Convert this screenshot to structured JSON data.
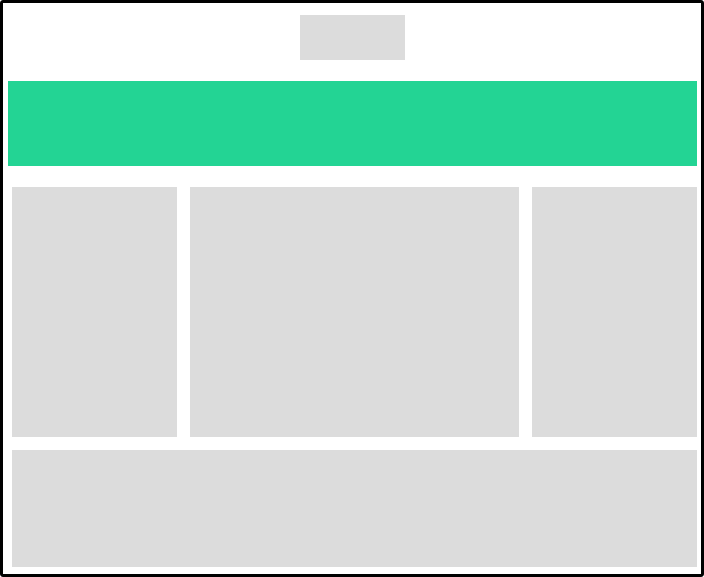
{
  "page": {
    "title": ""
  },
  "colors": {
    "frame_border": "#000000",
    "background": "#ffffff",
    "placeholder_block": "#dcdcdc",
    "hero_banner": "#23d494"
  },
  "regions": {
    "logo": {
      "label": ""
    },
    "hero": {
      "label": ""
    },
    "left_column": {
      "label": ""
    },
    "main_column": {
      "label": ""
    },
    "right_column": {
      "label": ""
    },
    "footer": {
      "label": ""
    }
  }
}
